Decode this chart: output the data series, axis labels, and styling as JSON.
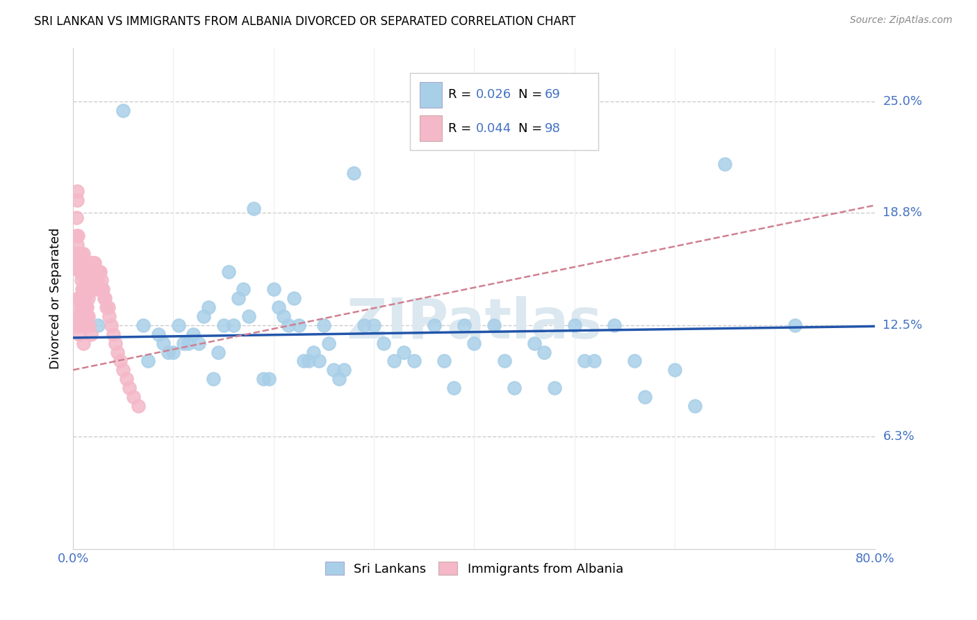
{
  "title": "SRI LANKAN VS IMMIGRANTS FROM ALBANIA DIVORCED OR SEPARATED CORRELATION CHART",
  "source": "Source: ZipAtlas.com",
  "ylabel": "Divorced or Separated",
  "xlim": [
    0,
    0.8
  ],
  "ylim": [
    0,
    0.28
  ],
  "ytick_positions": [
    0.063,
    0.125,
    0.188,
    0.25
  ],
  "ytick_labels": [
    "6.3%",
    "12.5%",
    "18.8%",
    "25.0%"
  ],
  "blue_color": "#a8cfe8",
  "pink_color": "#f4b8c8",
  "blue_line_color": "#2255aa",
  "pink_line_color": "#d08090",
  "legend_label1": "Sri Lankans",
  "legend_label2": "Immigrants from Albania",
  "watermark": "ZIPatlas",
  "blue_points_x": [
    0.025,
    0.05,
    0.07,
    0.075,
    0.085,
    0.09,
    0.095,
    0.1,
    0.105,
    0.11,
    0.115,
    0.12,
    0.125,
    0.13,
    0.135,
    0.14,
    0.145,
    0.15,
    0.155,
    0.16,
    0.165,
    0.17,
    0.175,
    0.18,
    0.19,
    0.195,
    0.2,
    0.205,
    0.21,
    0.215,
    0.22,
    0.225,
    0.23,
    0.235,
    0.24,
    0.245,
    0.25,
    0.255,
    0.26,
    0.265,
    0.27,
    0.28,
    0.29,
    0.3,
    0.31,
    0.32,
    0.33,
    0.34,
    0.36,
    0.37,
    0.38,
    0.39,
    0.4,
    0.42,
    0.43,
    0.44,
    0.46,
    0.47,
    0.48,
    0.5,
    0.51,
    0.52,
    0.54,
    0.56,
    0.57,
    0.6,
    0.62,
    0.65,
    0.72
  ],
  "blue_points_y": [
    0.125,
    0.245,
    0.125,
    0.105,
    0.12,
    0.115,
    0.11,
    0.11,
    0.125,
    0.115,
    0.115,
    0.12,
    0.115,
    0.13,
    0.135,
    0.095,
    0.11,
    0.125,
    0.155,
    0.125,
    0.14,
    0.145,
    0.13,
    0.19,
    0.095,
    0.095,
    0.145,
    0.135,
    0.13,
    0.125,
    0.14,
    0.125,
    0.105,
    0.105,
    0.11,
    0.105,
    0.125,
    0.115,
    0.1,
    0.095,
    0.1,
    0.21,
    0.125,
    0.125,
    0.115,
    0.105,
    0.11,
    0.105,
    0.125,
    0.105,
    0.09,
    0.125,
    0.115,
    0.125,
    0.105,
    0.09,
    0.115,
    0.11,
    0.09,
    0.125,
    0.105,
    0.105,
    0.125,
    0.105,
    0.085,
    0.1,
    0.08,
    0.215,
    0.125
  ],
  "pink_points_x": [
    0.005,
    0.005,
    0.005,
    0.006,
    0.006,
    0.007,
    0.007,
    0.007,
    0.008,
    0.008,
    0.008,
    0.009,
    0.009,
    0.01,
    0.01,
    0.01,
    0.01,
    0.011,
    0.011,
    0.012,
    0.012,
    0.013,
    0.013,
    0.013,
    0.014,
    0.014,
    0.015,
    0.015,
    0.015,
    0.016,
    0.016,
    0.017,
    0.017,
    0.018,
    0.018,
    0.019,
    0.019,
    0.02,
    0.02,
    0.021,
    0.021,
    0.022,
    0.022,
    0.023,
    0.024,
    0.025,
    0.026,
    0.027,
    0.028,
    0.029,
    0.03,
    0.031,
    0.032,
    0.033,
    0.035,
    0.036,
    0.038,
    0.04,
    0.042,
    0.044,
    0.047,
    0.05,
    0.053,
    0.056,
    0.06,
    0.065,
    0.007,
    0.007,
    0.008,
    0.009,
    0.01,
    0.01,
    0.011,
    0.012,
    0.012,
    0.013,
    0.014,
    0.015,
    0.004,
    0.004,
    0.005,
    0.005,
    0.006,
    0.003,
    0.003,
    0.003,
    0.004,
    0.004,
    0.005,
    0.006,
    0.007,
    0.008,
    0.009,
    0.01,
    0.012,
    0.014,
    0.016,
    0.018
  ],
  "pink_points_y": [
    0.125,
    0.135,
    0.14,
    0.13,
    0.12,
    0.14,
    0.13,
    0.125,
    0.14,
    0.13,
    0.125,
    0.135,
    0.125,
    0.145,
    0.135,
    0.125,
    0.115,
    0.14,
    0.13,
    0.14,
    0.13,
    0.145,
    0.135,
    0.125,
    0.145,
    0.135,
    0.15,
    0.14,
    0.13,
    0.155,
    0.145,
    0.155,
    0.145,
    0.16,
    0.15,
    0.155,
    0.145,
    0.16,
    0.15,
    0.16,
    0.15,
    0.155,
    0.145,
    0.155,
    0.15,
    0.155,
    0.155,
    0.155,
    0.15,
    0.145,
    0.145,
    0.14,
    0.14,
    0.135,
    0.135,
    0.13,
    0.125,
    0.12,
    0.115,
    0.11,
    0.105,
    0.1,
    0.095,
    0.09,
    0.085,
    0.08,
    0.165,
    0.155,
    0.165,
    0.16,
    0.165,
    0.155,
    0.16,
    0.155,
    0.15,
    0.155,
    0.15,
    0.145,
    0.2,
    0.195,
    0.175,
    0.165,
    0.16,
    0.185,
    0.175,
    0.165,
    0.17,
    0.16,
    0.165,
    0.16,
    0.155,
    0.15,
    0.145,
    0.14,
    0.135,
    0.13,
    0.125,
    0.12
  ]
}
